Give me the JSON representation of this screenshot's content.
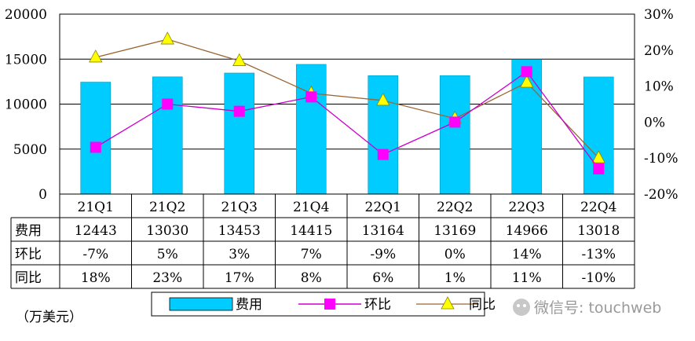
{
  "chart_data": {
    "type": "bar+line",
    "categories": [
      "21Q1",
      "21Q2",
      "21Q3",
      "21Q4",
      "22Q1",
      "22Q2",
      "22Q3",
      "22Q4"
    ],
    "left_axis": {
      "min": 0,
      "max": 20000,
      "ticks": [
        "0",
        "5000",
        "10000",
        "15000",
        "20000"
      ]
    },
    "right_axis": {
      "min": -20,
      "max": 30,
      "ticks": [
        "-20%",
        "-10%",
        "0%",
        "10%",
        "20%",
        "30%"
      ]
    },
    "series": [
      {
        "name": "费用",
        "kind": "bar",
        "color": "#00ccff",
        "values": [
          12443,
          13030,
          13453,
          14415,
          13164,
          13169,
          14966,
          13018
        ]
      },
      {
        "name": "环比",
        "kind": "line",
        "axis": "right",
        "color": "#ff00ff",
        "line_color": "#cc00cc",
        "values": [
          -7,
          5,
          3,
          7,
          -9,
          0,
          14,
          -13
        ]
      },
      {
        "name": "同比",
        "kind": "line",
        "axis": "right",
        "color": "#ffff00",
        "line_color": "#996633",
        "values": [
          18,
          23,
          17,
          8,
          6,
          1,
          11,
          -10
        ]
      }
    ]
  },
  "table": {
    "rows": [
      {
        "label": "费用",
        "cells": [
          "12443",
          "13030",
          "13453",
          "14415",
          "13164",
          "13169",
          "14966",
          "13018"
        ]
      },
      {
        "label": "环比",
        "cells": [
          "-7%",
          "5%",
          "3%",
          "7%",
          "-9%",
          "0%",
          "14%",
          "-13%"
        ]
      },
      {
        "label": "同比",
        "cells": [
          "18%",
          "23%",
          "17%",
          "8%",
          "6%",
          "1%",
          "11%",
          "-10%"
        ]
      }
    ]
  },
  "legend": {
    "items": [
      "费用",
      "环比",
      "同比"
    ]
  },
  "unit_note": "（万美元）",
  "watermark": "微信号: touchweb"
}
